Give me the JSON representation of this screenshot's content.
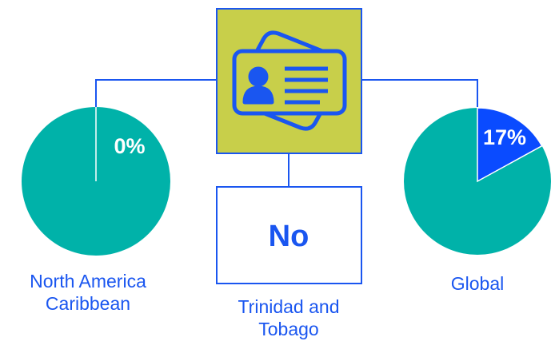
{
  "chart_data": [
    {
      "type": "pie",
      "label": "North America Caribbean",
      "values": [
        0
      ],
      "value_labels": [
        "0%"
      ],
      "colors": [
        "#0a4bff"
      ],
      "rest_color": "#00b2a9"
    },
    {
      "type": "pie",
      "label": "Global",
      "values": [
        17
      ],
      "value_labels": [
        "17%"
      ],
      "colors": [
        "#0a4bff"
      ],
      "rest_color": "#00b2a9"
    }
  ],
  "country": {
    "answer": "No",
    "name": "Trinidad and Tobago"
  }
}
